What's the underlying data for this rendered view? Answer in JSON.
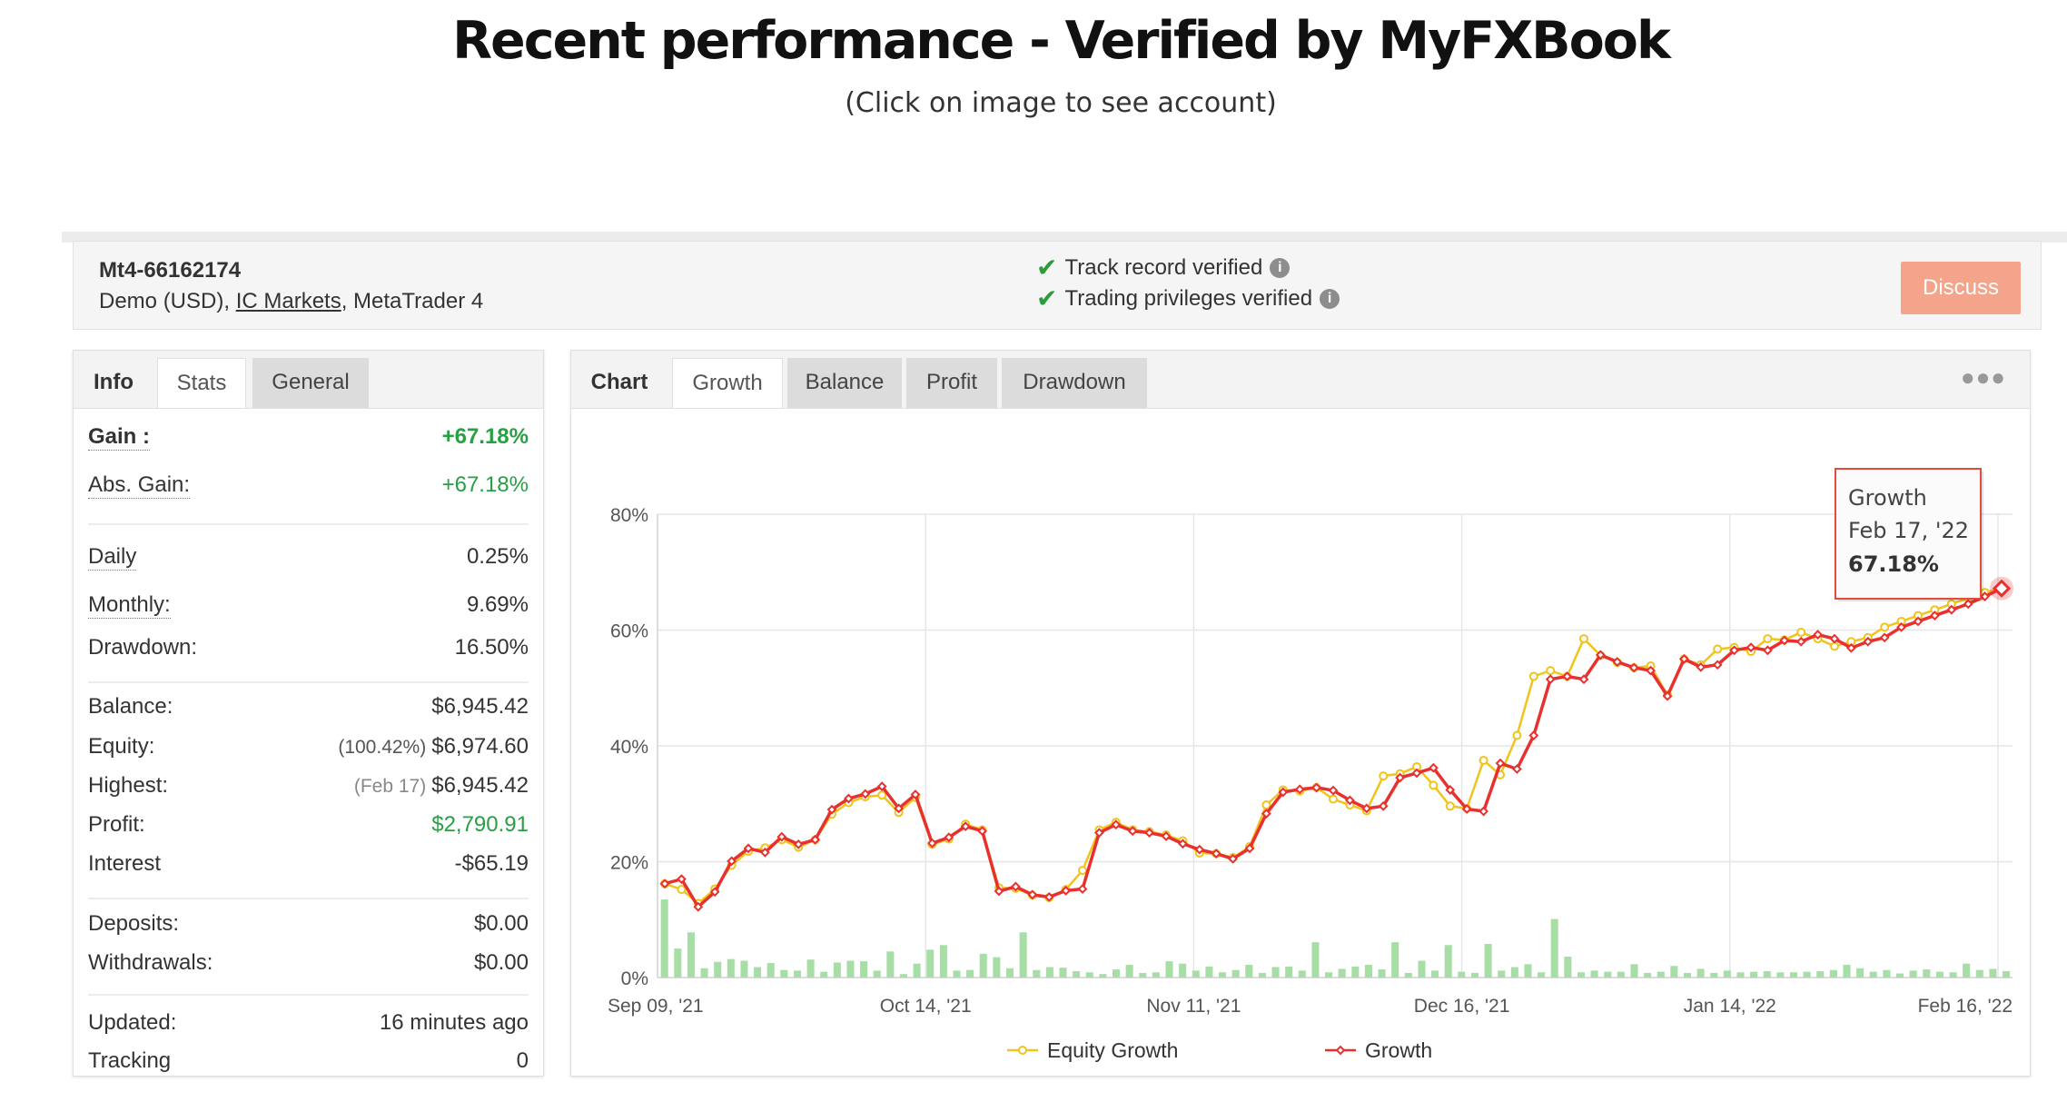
{
  "header": {
    "title": "Recent performance - Verified by MyFXBook",
    "subtitle": "(Click on image to see account)"
  },
  "account": {
    "name": "Mt4-66162174",
    "desc_prefix": "Demo (USD),",
    "broker": "IC Markets",
    "desc_suffix": ", MetaTrader 4",
    "verified_1": "Track record verified",
    "verified_2": "Trading privileges verified",
    "discuss_label": "Discuss"
  },
  "stats_tabs": [
    "Info",
    "Stats",
    "General"
  ],
  "stats": {
    "gain_label": "Gain :",
    "gain": "+67.18%",
    "abs_gain_label": "Abs. Gain:",
    "abs_gain": "+67.18%",
    "daily_label": "Daily",
    "daily": "0.25%",
    "monthly_label": "Monthly:",
    "monthly": "9.69%",
    "drawdown_label": "Drawdown:",
    "drawdown": "16.50%",
    "balance_label": "Balance:",
    "balance": "$6,945.42",
    "equity_label": "Equity:",
    "equity_pct": "(100.42%)",
    "equity": "$6,974.60",
    "highest_label": "Highest:",
    "highest_date": "(Feb 17)",
    "highest": "$6,945.42",
    "profit_label": "Profit:",
    "profit": "$2,790.91",
    "interest_label": "Interest",
    "interest": "-$65.19",
    "deposits_label": "Deposits:",
    "deposits": "$0.00",
    "withdrawals_label": "Withdrawals:",
    "withdrawals": "$0.00",
    "updated_label": "Updated:",
    "updated": "16 minutes ago",
    "tracking_label": "Tracking",
    "tracking": "0"
  },
  "chart_tabs": [
    "Chart",
    "Growth",
    "Balance",
    "Profit",
    "Drawdown"
  ],
  "more_icon": "ellipsis-icon",
  "colors": {
    "growth": "#e8312f",
    "equity": "#f0c41b",
    "bars": "#a6dea6",
    "profit_green": "#26a043",
    "discuss": "#f4a48a"
  },
  "chart_data": {
    "type": "line",
    "x_ticks": [
      "Sep 09, '21",
      "Oct 14, '21",
      "Nov 11, '21",
      "Dec 16, '21",
      "Jan 14, '22",
      "Feb 16, '22"
    ],
    "y_ticks": [
      "80%",
      "60%",
      "40%",
      "20%",
      "0%"
    ],
    "ylim": [
      0,
      80
    ],
    "x_range": [
      "Sep 09, '21",
      "Feb 17, '22"
    ],
    "grid": true,
    "legend_position": "bottom",
    "series": [
      {
        "name": "Equity Growth",
        "color": "#f0c41b",
        "marker": "circle",
        "values": [
          16.2,
          15.2,
          12.8,
          15.3,
          19.4,
          21.8,
          22.4,
          23.8,
          22.5,
          23.8,
          28.2,
          30.2,
          31.2,
          31.5,
          28.5,
          31.1,
          23.0,
          23.9,
          26.5,
          25.5,
          15.5,
          15.4,
          14.2,
          13.8,
          15.2,
          18.5,
          25.5,
          26.8,
          25.5,
          25.2,
          24.6,
          23.6,
          21.5,
          21.4,
          20.7,
          22.6,
          29.8,
          32.4,
          32.2,
          32.8,
          30.8,
          29.8,
          28.8,
          34.8,
          35.2,
          36.4,
          33.2,
          29.6,
          29.2,
          37.5,
          35.0,
          41.8,
          52.0,
          53.0,
          52.0,
          58.5,
          55.6,
          54.4,
          53.5,
          53.8,
          48.8,
          55.0,
          54.0,
          56.7,
          57.0,
          56.3,
          58.5,
          58.3,
          59.6,
          58.5,
          57.2,
          58.0,
          58.7,
          60.5,
          61.5,
          62.5,
          63.5,
          64.5,
          65.5,
          66.5,
          67.2
        ]
      },
      {
        "name": "Growth",
        "color": "#e8312f",
        "marker": "diamond",
        "values": [
          16.2,
          17.0,
          12.2,
          14.8,
          20.1,
          22.3,
          21.6,
          24.3,
          23.0,
          23.8,
          29.0,
          30.9,
          31.7,
          33.0,
          29.2,
          31.6,
          23.2,
          24.2,
          26.1,
          25.3,
          14.9,
          15.7,
          14.3,
          13.9,
          15.0,
          15.3,
          25.0,
          26.4,
          25.3,
          25.0,
          24.4,
          23.1,
          22.1,
          21.4,
          20.5,
          22.3,
          28.3,
          32.0,
          32.5,
          32.8,
          32.3,
          30.6,
          29.2,
          29.6,
          34.5,
          35.3,
          36.2,
          32.4,
          29.1,
          28.7,
          37.0,
          36.0,
          41.8,
          51.5,
          52.0,
          51.5,
          55.7,
          54.5,
          53.5,
          53.0,
          48.6,
          55.0,
          53.6,
          54.0,
          56.5,
          57.0,
          56.5,
          58.2,
          58.0,
          59.2,
          58.5,
          56.9,
          58.0,
          58.7,
          60.5,
          61.5,
          62.5,
          63.5,
          64.5,
          65.8,
          67.18
        ]
      }
    ],
    "daily_bars": [
      13.5,
      5.0,
      7.8,
      1.6,
      2.7,
      3.2,
      2.9,
      1.8,
      2.5,
      1.3,
      1.2,
      3.1,
      1.0,
      2.6,
      2.9,
      2.8,
      1.2,
      4.5,
      0.6,
      2.4,
      4.8,
      5.6,
      1.2,
      1.3,
      4.1,
      3.5,
      1.6,
      7.8,
      1.3,
      1.8,
      1.7,
      1.1,
      0.9,
      0.6,
      1.4,
      2.2,
      0.8,
      0.9,
      2.8,
      2.4,
      1.2,
      1.9,
      0.9,
      1.3,
      2.2,
      0.8,
      1.8,
      1.9,
      1.2,
      6.1,
      0.9,
      1.5,
      1.9,
      2.2,
      1.4,
      6.1,
      0.8,
      2.9,
      1.2,
      5.6,
      1.0,
      0.8,
      5.8,
      1.2,
      1.8,
      2.3,
      0.9,
      10.1,
      3.6,
      0.9,
      1.2,
      1.0,
      1.0,
      2.3,
      0.8,
      1.0,
      2.0,
      0.8,
      1.5,
      0.8,
      1.2,
      0.9,
      1.0,
      1.1,
      0.9,
      0.9,
      1.0,
      1.1,
      1.3,
      2.2,
      1.6,
      1.0,
      1.3,
      0.7,
      1.2,
      1.4,
      1.0,
      0.9,
      2.4,
      1.3,
      1.5,
      1.1
    ],
    "tooltip": {
      "series": "Growth",
      "date": "Feb 17, '22",
      "value": "67.18%"
    }
  }
}
